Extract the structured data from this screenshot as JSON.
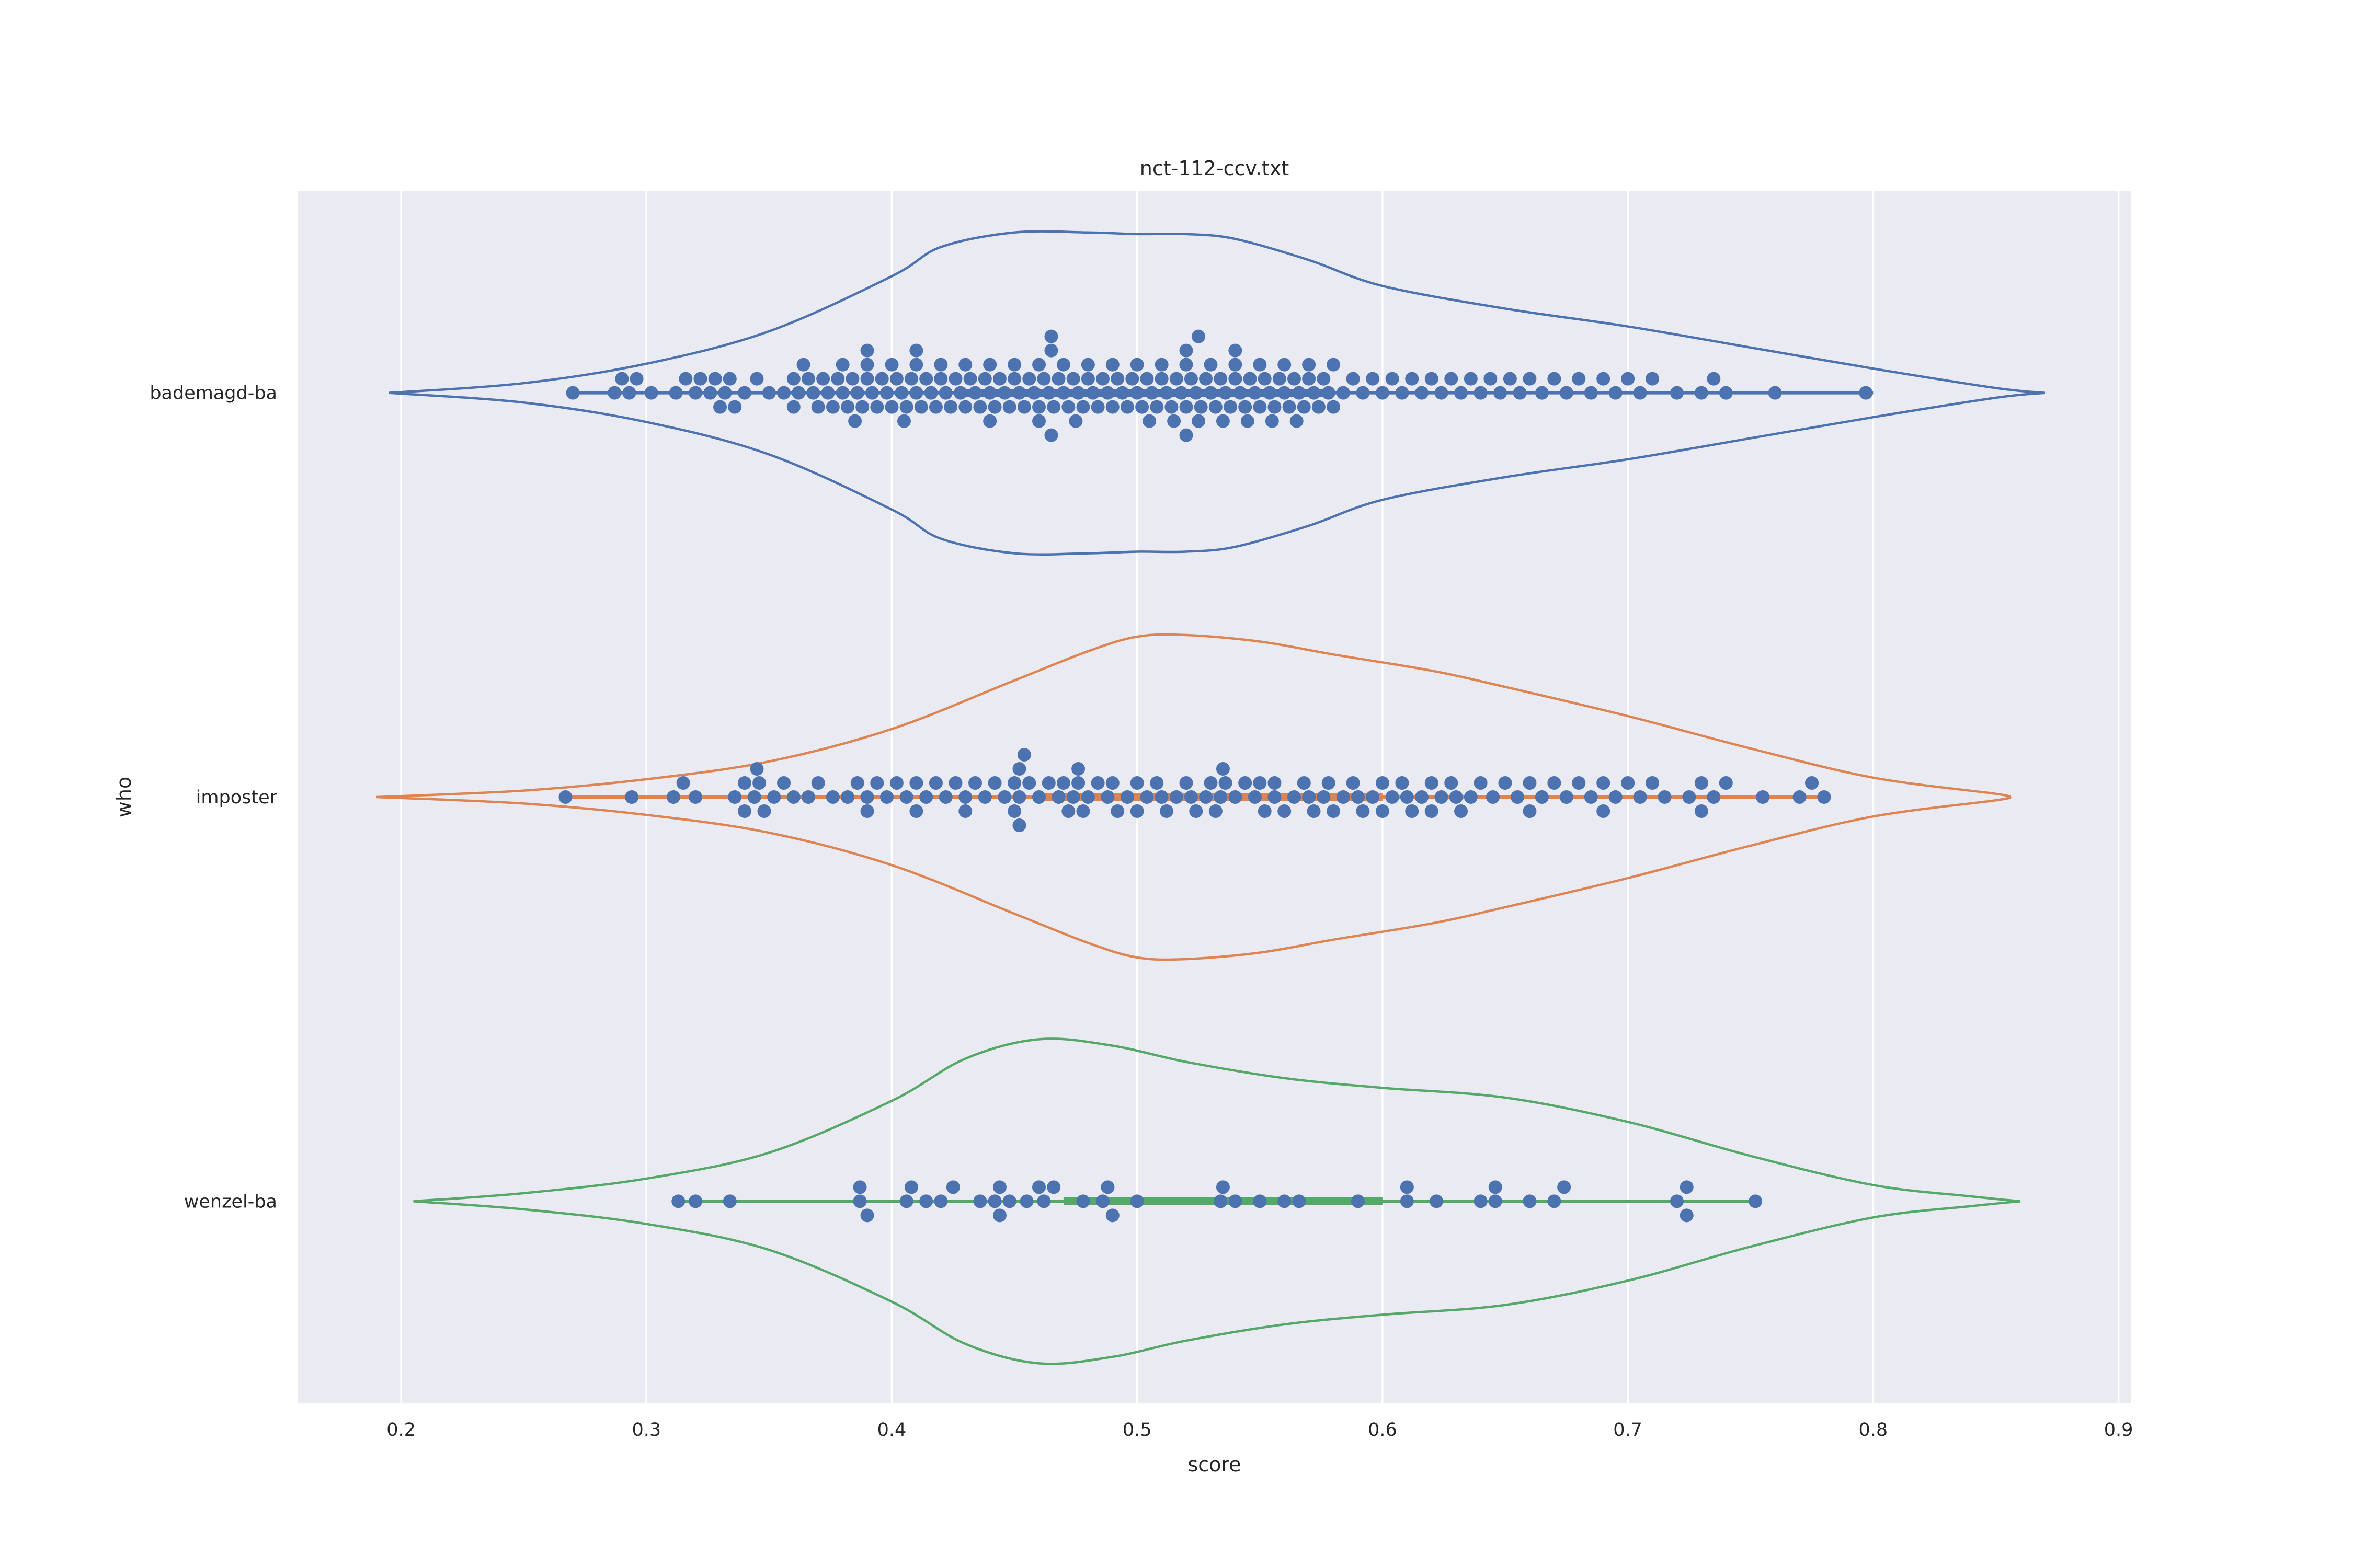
{
  "chart_data": {
    "type": "violin",
    "title": "nct-112-ccv.txt",
    "xlabel": "score",
    "ylabel": "who",
    "xlim": [
      0.158,
      0.905
    ],
    "x_ticks": [
      "0.2",
      "0.3",
      "0.4",
      "0.5",
      "0.6",
      "0.7",
      "0.8",
      "0.9"
    ],
    "grid": true,
    "point_color": "#4c72b0",
    "categories": [
      "bademagd-ba",
      "imposter",
      "wenzel-ba"
    ],
    "series": [
      {
        "category": "bademagd-ba",
        "color": "#4c72b0",
        "min": 0.27,
        "q1": 0.43,
        "median": 0.5,
        "q3": 0.58,
        "max": 0.8,
        "density_curve": [
          [
            0.195,
            0.0
          ],
          [
            0.25,
            0.06
          ],
          [
            0.3,
            0.18
          ],
          [
            0.35,
            0.38
          ],
          [
            0.4,
            0.72
          ],
          [
            0.42,
            0.9
          ],
          [
            0.45,
            0.99
          ],
          [
            0.48,
            0.99
          ],
          [
            0.5,
            0.98
          ],
          [
            0.52,
            0.98
          ],
          [
            0.54,
            0.95
          ],
          [
            0.57,
            0.82
          ],
          [
            0.6,
            0.66
          ],
          [
            0.65,
            0.52
          ],
          [
            0.7,
            0.41
          ],
          [
            0.75,
            0.28
          ],
          [
            0.8,
            0.15
          ],
          [
            0.85,
            0.03
          ],
          [
            0.87,
            0.0
          ]
        ],
        "values": [
          0.27,
          0.287,
          0.29,
          0.293,
          0.296,
          0.302,
          0.312,
          0.316,
          0.32,
          0.322,
          0.326,
          0.328,
          0.33,
          0.332,
          0.334,
          0.336,
          0.34,
          0.345,
          0.35,
          0.356,
          0.36,
          0.362,
          0.364,
          0.366,
          0.368,
          0.37,
          0.372,
          0.374,
          0.376,
          0.378,
          0.38,
          0.382,
          0.384,
          0.386,
          0.388,
          0.39,
          0.392,
          0.394,
          0.396,
          0.398,
          0.4,
          0.402,
          0.404,
          0.406,
          0.408,
          0.41,
          0.412,
          0.414,
          0.416,
          0.418,
          0.42,
          0.422,
          0.424,
          0.426,
          0.428,
          0.43,
          0.432,
          0.434,
          0.436,
          0.438,
          0.44,
          0.442,
          0.444,
          0.446,
          0.448,
          0.45,
          0.452,
          0.454,
          0.456,
          0.458,
          0.46,
          0.462,
          0.464,
          0.466,
          0.468,
          0.47,
          0.472,
          0.474,
          0.476,
          0.478,
          0.48,
          0.482,
          0.484,
          0.486,
          0.488,
          0.49,
          0.492,
          0.494,
          0.496,
          0.498,
          0.5,
          0.502,
          0.504,
          0.506,
          0.508,
          0.51,
          0.512,
          0.514,
          0.516,
          0.518,
          0.52,
          0.522,
          0.524,
          0.526,
          0.528,
          0.53,
          0.532,
          0.534,
          0.536,
          0.538,
          0.54,
          0.542,
          0.544,
          0.546,
          0.548,
          0.55,
          0.552,
          0.554,
          0.556,
          0.558,
          0.56,
          0.562,
          0.564,
          0.566,
          0.568,
          0.57,
          0.572,
          0.574,
          0.576,
          0.578,
          0.58,
          0.584,
          0.588,
          0.592,
          0.596,
          0.6,
          0.604,
          0.608,
          0.612,
          0.616,
          0.62,
          0.624,
          0.628,
          0.632,
          0.636,
          0.64,
          0.644,
          0.648,
          0.652,
          0.656,
          0.66,
          0.665,
          0.67,
          0.675,
          0.68,
          0.685,
          0.69,
          0.695,
          0.7,
          0.705,
          0.71,
          0.72,
          0.73,
          0.735,
          0.74,
          0.76,
          0.797,
          0.36,
          0.38,
          0.4,
          0.42,
          0.44,
          0.46,
          0.47,
          0.48,
          0.5,
          0.51,
          0.52,
          0.53,
          0.54,
          0.55,
          0.56,
          0.57,
          0.58,
          0.39,
          0.41,
          0.43,
          0.45,
          0.465,
          0.475,
          0.49,
          0.505,
          0.515,
          0.525,
          0.535,
          0.545,
          0.555,
          0.565,
          0.385,
          0.405,
          0.44,
          0.46,
          0.465,
          0.52,
          0.525,
          0.54,
          0.41,
          0.465,
          0.52,
          0.39
        ]
      },
      {
        "category": "imposter",
        "color": "#dd8452",
        "min": 0.267,
        "q1": 0.46,
        "median": 0.54,
        "q3": 0.6,
        "max": 0.78,
        "density_curve": [
          [
            0.19,
            0.0
          ],
          [
            0.25,
            0.04
          ],
          [
            0.3,
            0.11
          ],
          [
            0.35,
            0.22
          ],
          [
            0.4,
            0.42
          ],
          [
            0.45,
            0.72
          ],
          [
            0.48,
            0.9
          ],
          [
            0.5,
            0.99
          ],
          [
            0.52,
            1.0
          ],
          [
            0.55,
            0.96
          ],
          [
            0.58,
            0.88
          ],
          [
            0.62,
            0.78
          ],
          [
            0.65,
            0.68
          ],
          [
            0.7,
            0.5
          ],
          [
            0.75,
            0.3
          ],
          [
            0.8,
            0.12
          ],
          [
            0.85,
            0.02
          ],
          [
            0.855,
            0.0
          ]
        ],
        "values": [
          0.267,
          0.294,
          0.311,
          0.315,
          0.32,
          0.336,
          0.34,
          0.344,
          0.346,
          0.348,
          0.352,
          0.356,
          0.36,
          0.366,
          0.37,
          0.376,
          0.382,
          0.386,
          0.39,
          0.394,
          0.398,
          0.402,
          0.406,
          0.41,
          0.414,
          0.418,
          0.422,
          0.426,
          0.43,
          0.434,
          0.438,
          0.442,
          0.446,
          0.45,
          0.452,
          0.454,
          0.456,
          0.46,
          0.464,
          0.468,
          0.472,
          0.474,
          0.476,
          0.478,
          0.48,
          0.484,
          0.488,
          0.492,
          0.496,
          0.5,
          0.504,
          0.508,
          0.512,
          0.516,
          0.52,
          0.524,
          0.528,
          0.532,
          0.536,
          0.54,
          0.544,
          0.548,
          0.552,
          0.556,
          0.56,
          0.564,
          0.568,
          0.572,
          0.576,
          0.58,
          0.584,
          0.588,
          0.592,
          0.596,
          0.6,
          0.604,
          0.608,
          0.612,
          0.616,
          0.62,
          0.624,
          0.628,
          0.632,
          0.636,
          0.64,
          0.645,
          0.65,
          0.655,
          0.66,
          0.665,
          0.67,
          0.675,
          0.68,
          0.685,
          0.69,
          0.695,
          0.7,
          0.705,
          0.71,
          0.715,
          0.725,
          0.73,
          0.735,
          0.74,
          0.755,
          0.77,
          0.775,
          0.78,
          0.34,
          0.345,
          0.39,
          0.41,
          0.43,
          0.45,
          0.47,
          0.49,
          0.51,
          0.53,
          0.55,
          0.57,
          0.59,
          0.61,
          0.63,
          0.66,
          0.69,
          0.73,
          0.452,
          0.476,
          0.5,
          0.522,
          0.534,
          0.556,
          0.578,
          0.6,
          0.62,
          0.452,
          0.535
        ]
      },
      {
        "category": "wenzel-ba",
        "color": "#55a868",
        "min": 0.313,
        "q1": 0.47,
        "median": 0.53,
        "q3": 0.6,
        "max": 0.753,
        "density_curve": [
          [
            0.205,
            0.0
          ],
          [
            0.25,
            0.05
          ],
          [
            0.3,
            0.14
          ],
          [
            0.35,
            0.3
          ],
          [
            0.4,
            0.62
          ],
          [
            0.43,
            0.88
          ],
          [
            0.46,
            1.0
          ],
          [
            0.49,
            0.96
          ],
          [
            0.52,
            0.86
          ],
          [
            0.56,
            0.76
          ],
          [
            0.6,
            0.7
          ],
          [
            0.65,
            0.64
          ],
          [
            0.7,
            0.49
          ],
          [
            0.75,
            0.28
          ],
          [
            0.8,
            0.1
          ],
          [
            0.84,
            0.03
          ],
          [
            0.86,
            0.0
          ]
        ],
        "values": [
          0.313,
          0.32,
          0.334,
          0.387,
          0.39,
          0.406,
          0.414,
          0.42,
          0.425,
          0.436,
          0.442,
          0.444,
          0.448,
          0.455,
          0.46,
          0.462,
          0.466,
          0.478,
          0.486,
          0.49,
          0.5,
          0.534,
          0.54,
          0.55,
          0.56,
          0.566,
          0.59,
          0.61,
          0.622,
          0.64,
          0.646,
          0.66,
          0.67,
          0.674,
          0.72,
          0.724,
          0.752,
          0.408,
          0.444,
          0.488,
          0.535,
          0.61,
          0.646,
          0.387,
          0.724
        ]
      }
    ]
  }
}
